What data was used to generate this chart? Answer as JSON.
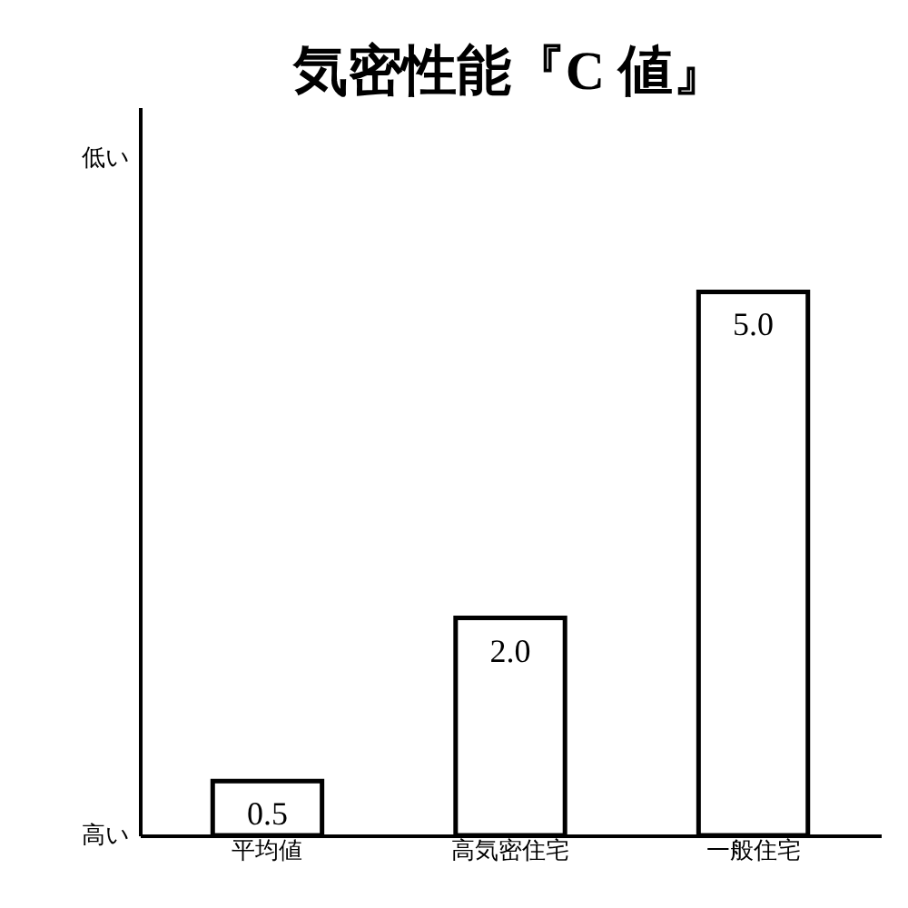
{
  "chart_data": {
    "type": "bar",
    "title": "気密性能『C 値』",
    "categories": [
      "平均値",
      "高気密住宅",
      "一般住宅"
    ],
    "values": [
      0.5,
      2.0,
      5.0
    ],
    "color": "#ffffff",
    "value_labels": [
      "0.5",
      "2.0",
      "5.0"
    ],
    "ylim": [
      0,
      6.7
    ],
    "tick_labels": "x",
    "annotations": [
      "低い",
      "高い"
    ],
    "grid": false
  }
}
